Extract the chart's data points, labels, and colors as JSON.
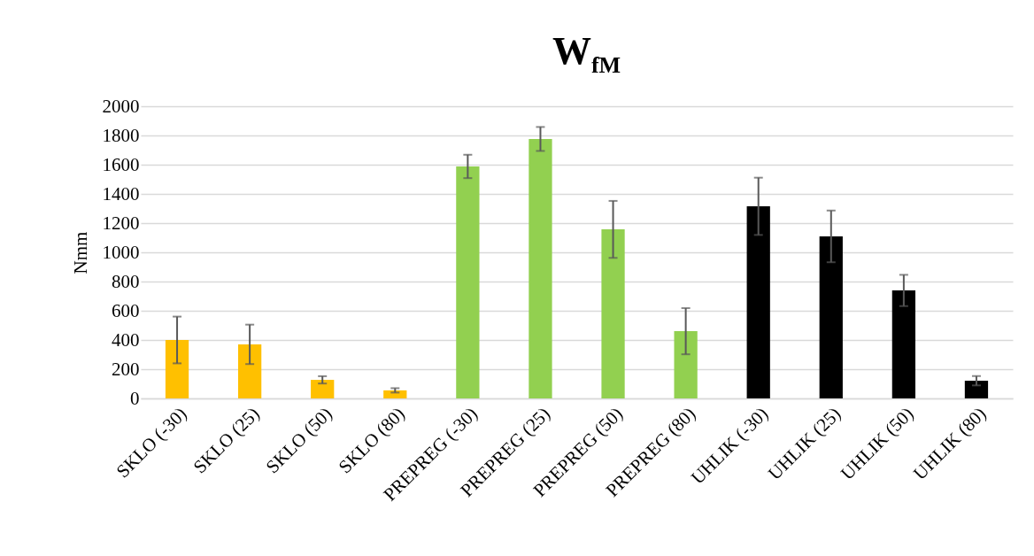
{
  "chart_data": {
    "type": "bar",
    "title": "W$_{fM}$",
    "ylabel": "Nmm",
    "categories": [
      "SKLO (-30)",
      "SKLO (25)",
      "SKLO (50)",
      "SKLO (80)",
      "PREPREG (-30)",
      "PREPREG (25)",
      "PREPREG (50)",
      "PREPREG (80)",
      "UHLIK (-30)",
      "UHLIK (25)",
      "UHLIK (50)",
      "UHLIK (80)"
    ],
    "values": [
      400,
      370,
      127,
      55,
      1588,
      1776,
      1157,
      460,
      1315,
      1109,
      739,
      121
    ],
    "errors": [
      160,
      135,
      25,
      15,
      80,
      82,
      195,
      158,
      196,
      177,
      107,
      32
    ],
    "colors": [
      "#ffc000",
      "#ffc000",
      "#ffc000",
      "#ffc000",
      "#92d050",
      "#92d050",
      "#92d050",
      "#92d050",
      "#000000",
      "#000000",
      "#000000",
      "#000000"
    ],
    "ylim": [
      0,
      2000
    ],
    "yticks": [
      0,
      200,
      400,
      600,
      800,
      1000,
      1200,
      1400,
      1600,
      1800,
      2000
    ],
    "grid": "y"
  }
}
